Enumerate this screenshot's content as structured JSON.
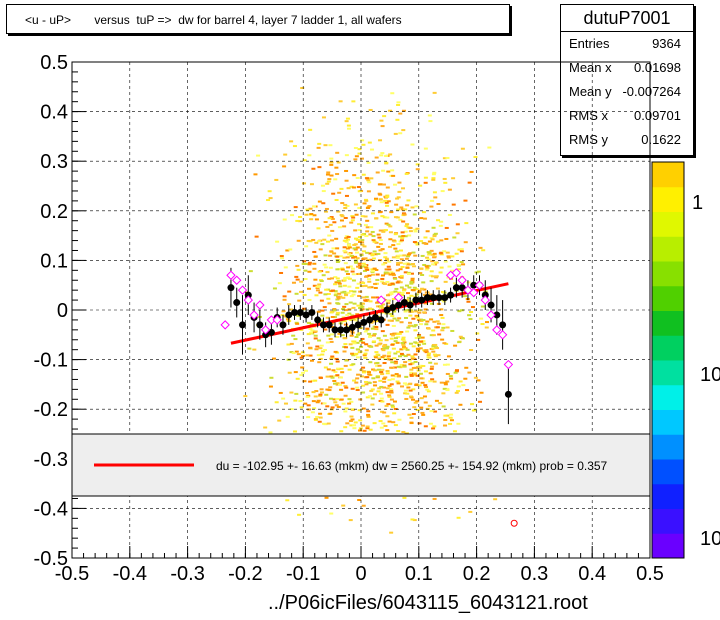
{
  "title": "<u - uP>       versus  tuP =>  dw for barrel 4, layer 7 ladder 1, all wafers",
  "stats": {
    "name": "dutuP7001",
    "rows": [
      {
        "key": "Entries",
        "value": "9364"
      },
      {
        "key": "Mean x",
        "value": "0.01698"
      },
      {
        "key": "Mean y",
        "value": "-0.007264"
      },
      {
        "key": "RMS x",
        "value": "0.09701"
      },
      {
        "key": "RMS y",
        "value": "0.1622"
      }
    ]
  },
  "xaxis_title": "../P06icFiles/6043115_6043121.root",
  "legend": {
    "text": "du = -102.95 +- 16.63 (mkm) dw = 2560.25 +- 154.92 (mkm) prob = 0.357",
    "line_color": "#ff0000"
  },
  "colorbar_labels": [
    "1",
    "10",
    "10"
  ],
  "colors": {
    "profile": "#000000",
    "markers": "#ff00ff",
    "fit": "#ff0000"
  },
  "chart_data": {
    "type": "scatter",
    "xlim": [
      -0.5,
      0.5
    ],
    "ylim": [
      -0.5,
      0.5
    ],
    "xticks": [
      "-0.5",
      "-0.4",
      "-0.3",
      "-0.2",
      "-0.1",
      "0",
      "0.1",
      "0.2",
      "0.3",
      "0.4",
      "0.5"
    ],
    "yticks": [
      "-0.5",
      "-0.4",
      "-0.3",
      "-0.2",
      "-0.1",
      "0",
      "0.1",
      "0.2",
      "0.3",
      "0.4",
      "0.5"
    ],
    "grid": true,
    "fit_line": {
      "x": [
        -0.225,
        0.255
      ],
      "y": [
        -0.067,
        0.053
      ]
    },
    "profile": {
      "x": [
        -0.225,
        -0.215,
        -0.205,
        -0.195,
        -0.185,
        -0.175,
        -0.165,
        -0.155,
        -0.145,
        -0.135,
        -0.125,
        -0.115,
        -0.105,
        -0.095,
        -0.085,
        -0.075,
        -0.065,
        -0.055,
        -0.045,
        -0.035,
        -0.025,
        -0.015,
        -0.005,
        0.005,
        0.015,
        0.025,
        0.035,
        0.045,
        0.055,
        0.065,
        0.075,
        0.085,
        0.095,
        0.105,
        0.115,
        0.125,
        0.135,
        0.145,
        0.155,
        0.165,
        0.175,
        0.185,
        0.195,
        0.205,
        0.215,
        0.225,
        0.235,
        0.245,
        0.255
      ],
      "y": [
        0.045,
        0.015,
        -0.03,
        0.03,
        -0.015,
        -0.03,
        -0.05,
        -0.045,
        -0.015,
        -0.03,
        -0.01,
        -0.005,
        -0.005,
        -0.01,
        -0.005,
        -0.02,
        -0.03,
        -0.03,
        -0.04,
        -0.04,
        -0.04,
        -0.035,
        -0.03,
        -0.025,
        -0.02,
        -0.015,
        -0.02,
        0,
        0.005,
        0.01,
        0.015,
        0.01,
        0.02,
        0.02,
        0.025,
        0.025,
        0.025,
        0.025,
        0.03,
        0.045,
        0.045,
        0.04,
        0.05,
        0.05,
        0.03,
        0.01,
        -0.01,
        -0.03,
        -0.17
      ],
      "err": [
        0.04,
        0.03,
        0.06,
        0.04,
        0.03,
        0.03,
        0.025,
        0.025,
        0.02,
        0.02,
        0.02,
        0.015,
        0.015,
        0.015,
        0.015,
        0.015,
        0.015,
        0.015,
        0.015,
        0.015,
        0.015,
        0.015,
        0.015,
        0.015,
        0.015,
        0.015,
        0.015,
        0.015,
        0.015,
        0.015,
        0.015,
        0.015,
        0.015,
        0.015,
        0.015,
        0.015,
        0.015,
        0.015,
        0.015,
        0.02,
        0.02,
        0.02,
        0.02,
        0.02,
        0.03,
        0.035,
        0.04,
        0.05,
        0.06
      ]
    },
    "markers": {
      "x": [
        -0.235,
        -0.225,
        -0.215,
        -0.205,
        -0.195,
        -0.185,
        -0.175,
        -0.165,
        -0.155,
        -0.145,
        0.035,
        0.065,
        0.155,
        0.165,
        0.175,
        0.185,
        0.195,
        0.205,
        0.215,
        0.225,
        0.235,
        0.245,
        0.255,
        0.265
      ],
      "y": [
        -0.03,
        0.07,
        0.06,
        0.04,
        0.02,
        -0.01,
        0.01,
        -0.04,
        -0.02,
        -0.02,
        0.02,
        0.025,
        0.07,
        0.075,
        0.06,
        0.04,
        0.035,
        0.05,
        0.02,
        -0.01,
        -0.04,
        -0.05,
        -0.11,
        -0.43
      ]
    }
  }
}
